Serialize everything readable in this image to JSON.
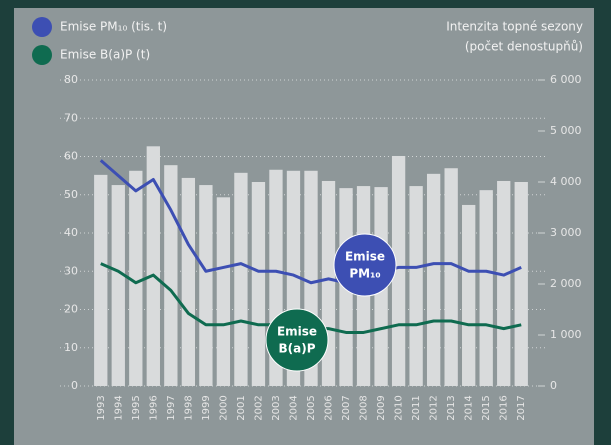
{
  "chart_data": {
    "type": "bar-line",
    "y2_label": [
      "Intenzita topné sezony",
      "(počet denostupňů)"
    ],
    "categories": [
      "1993",
      "1994",
      "1995",
      "1996",
      "1997",
      "1998",
      "1999",
      "2000",
      "2001",
      "2002",
      "2003",
      "2004",
      "2005",
      "2006",
      "2007",
      "2008",
      "2009",
      "2010",
      "2011",
      "2012",
      "2013",
      "2014",
      "2015",
      "2016",
      "2017"
    ],
    "bars": {
      "color": "#d9dbdc",
      "axis": "y2",
      "values": [
        4140,
        3940,
        4220,
        4700,
        4330,
        4080,
        3940,
        3700,
        4180,
        4000,
        4240,
        4220,
        4220,
        4020,
        3880,
        3920,
        3900,
        4510,
        3920,
        4160,
        4270,
        3550,
        3840,
        4020,
        4000
      ]
    },
    "series": [
      {
        "name": "Emise PM₁₀ (tis. t)",
        "color": "#3d4fb3",
        "annotation": [
          "Emise",
          "PM₁₀"
        ],
        "values": [
          59,
          55,
          51,
          54,
          46,
          37,
          30,
          31,
          32,
          30,
          30,
          29,
          27,
          28,
          27,
          29,
          30,
          31,
          31,
          32,
          32,
          30,
          30,
          29,
          31
        ]
      },
      {
        "name": "Emise B(a)P (t)",
        "color": "#0f6b50",
        "annotation": [
          "Emise",
          "B(a)P"
        ],
        "values": [
          32,
          30,
          27,
          29,
          25,
          19,
          16,
          16,
          17,
          16,
          16,
          16,
          15,
          15,
          14,
          14,
          15,
          16,
          16,
          17,
          17,
          16,
          16,
          15,
          16
        ]
      }
    ],
    "ylim": [
      0,
      80
    ],
    "yticks": [
      0,
      10,
      20,
      30,
      40,
      50,
      60,
      70,
      80
    ],
    "y2lim": [
      0,
      6000
    ],
    "y2ticks": [
      0,
      {
        "value": 1000,
        "label": "1 000"
      },
      {
        "value": 2000,
        "label": "2 000"
      },
      {
        "value": 3000,
        "label": "3 000"
      },
      {
        "value": 4000,
        "label": "4 000"
      },
      {
        "value": 5000,
        "label": "5 000"
      },
      {
        "value": 6000,
        "label": "6 000"
      }
    ],
    "grid": true
  }
}
